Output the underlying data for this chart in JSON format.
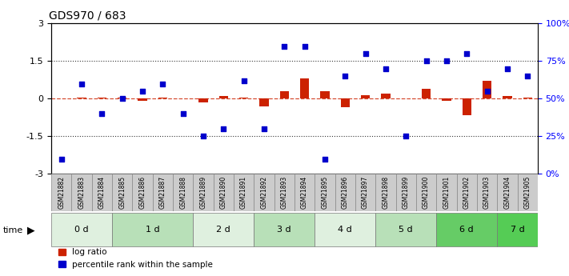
{
  "title": "GDS970 / 683",
  "samples": [
    "GSM21882",
    "GSM21883",
    "GSM21884",
    "GSM21885",
    "GSM21886",
    "GSM21887",
    "GSM21888",
    "GSM21889",
    "GSM21890",
    "GSM21891",
    "GSM21892",
    "GSM21893",
    "GSM21894",
    "GSM21895",
    "GSM21896",
    "GSM21897",
    "GSM21898",
    "GSM21899",
    "GSM21900",
    "GSM21901",
    "GSM21902",
    "GSM21903",
    "GSM21904",
    "GSM21905"
  ],
  "groups": [
    {
      "label": "0 d",
      "indices": [
        0,
        1,
        2
      ],
      "color": "#dff0df"
    },
    {
      "label": "1 d",
      "indices": [
        3,
        4,
        5,
        6
      ],
      "color": "#b8e0b8"
    },
    {
      "label": "2 d",
      "indices": [
        7,
        8,
        9
      ],
      "color": "#dff0df"
    },
    {
      "label": "3 d",
      "indices": [
        10,
        11,
        12
      ],
      "color": "#b8e0b8"
    },
    {
      "label": "4 d",
      "indices": [
        13,
        14,
        15
      ],
      "color": "#dff0df"
    },
    {
      "label": "5 d",
      "indices": [
        16,
        17,
        18
      ],
      "color": "#b8e0b8"
    },
    {
      "label": "6 d",
      "indices": [
        19,
        20,
        21
      ],
      "color": "#66cc66"
    },
    {
      "label": "7 d",
      "indices": [
        22,
        23
      ],
      "color": "#55cc55"
    }
  ],
  "log_ratio": [
    0.0,
    0.05,
    0.05,
    0.05,
    -0.1,
    0.05,
    0.0,
    -0.15,
    0.1,
    0.05,
    -0.3,
    0.3,
    0.8,
    0.3,
    -0.35,
    0.15,
    0.2,
    0.0,
    0.4,
    -0.1,
    -0.65,
    0.7,
    0.1,
    0.05
  ],
  "pct_rank": [
    10,
    60,
    40,
    50,
    55,
    60,
    40,
    25,
    30,
    62,
    30,
    85,
    85,
    10,
    65,
    80,
    70,
    25,
    75,
    75,
    80,
    55,
    70,
    65
  ],
  "ylim_left": [
    -3,
    3
  ],
  "ylim_right": [
    0,
    100
  ],
  "yticks_left": [
    -3,
    -1.5,
    0,
    1.5,
    3
  ],
  "yticks_right": [
    0,
    25,
    50,
    75,
    100
  ],
  "ytick_labels_left": [
    "-3",
    "-1.5",
    "0",
    "1.5",
    "3"
  ],
  "ytick_labels_right": [
    "0%",
    "25%",
    "50%",
    "75%",
    "100%"
  ],
  "hlines": [
    1.5,
    -1.5
  ],
  "bar_color": "#cc2200",
  "dot_color": "#0000cc",
  "zero_line_color": "#cc2200",
  "dotted_line_color": "#333333",
  "bg_color": "#ffffff",
  "legend_bar_label": "log ratio",
  "legend_dot_label": "percentile rank within the sample",
  "time_label": "time"
}
